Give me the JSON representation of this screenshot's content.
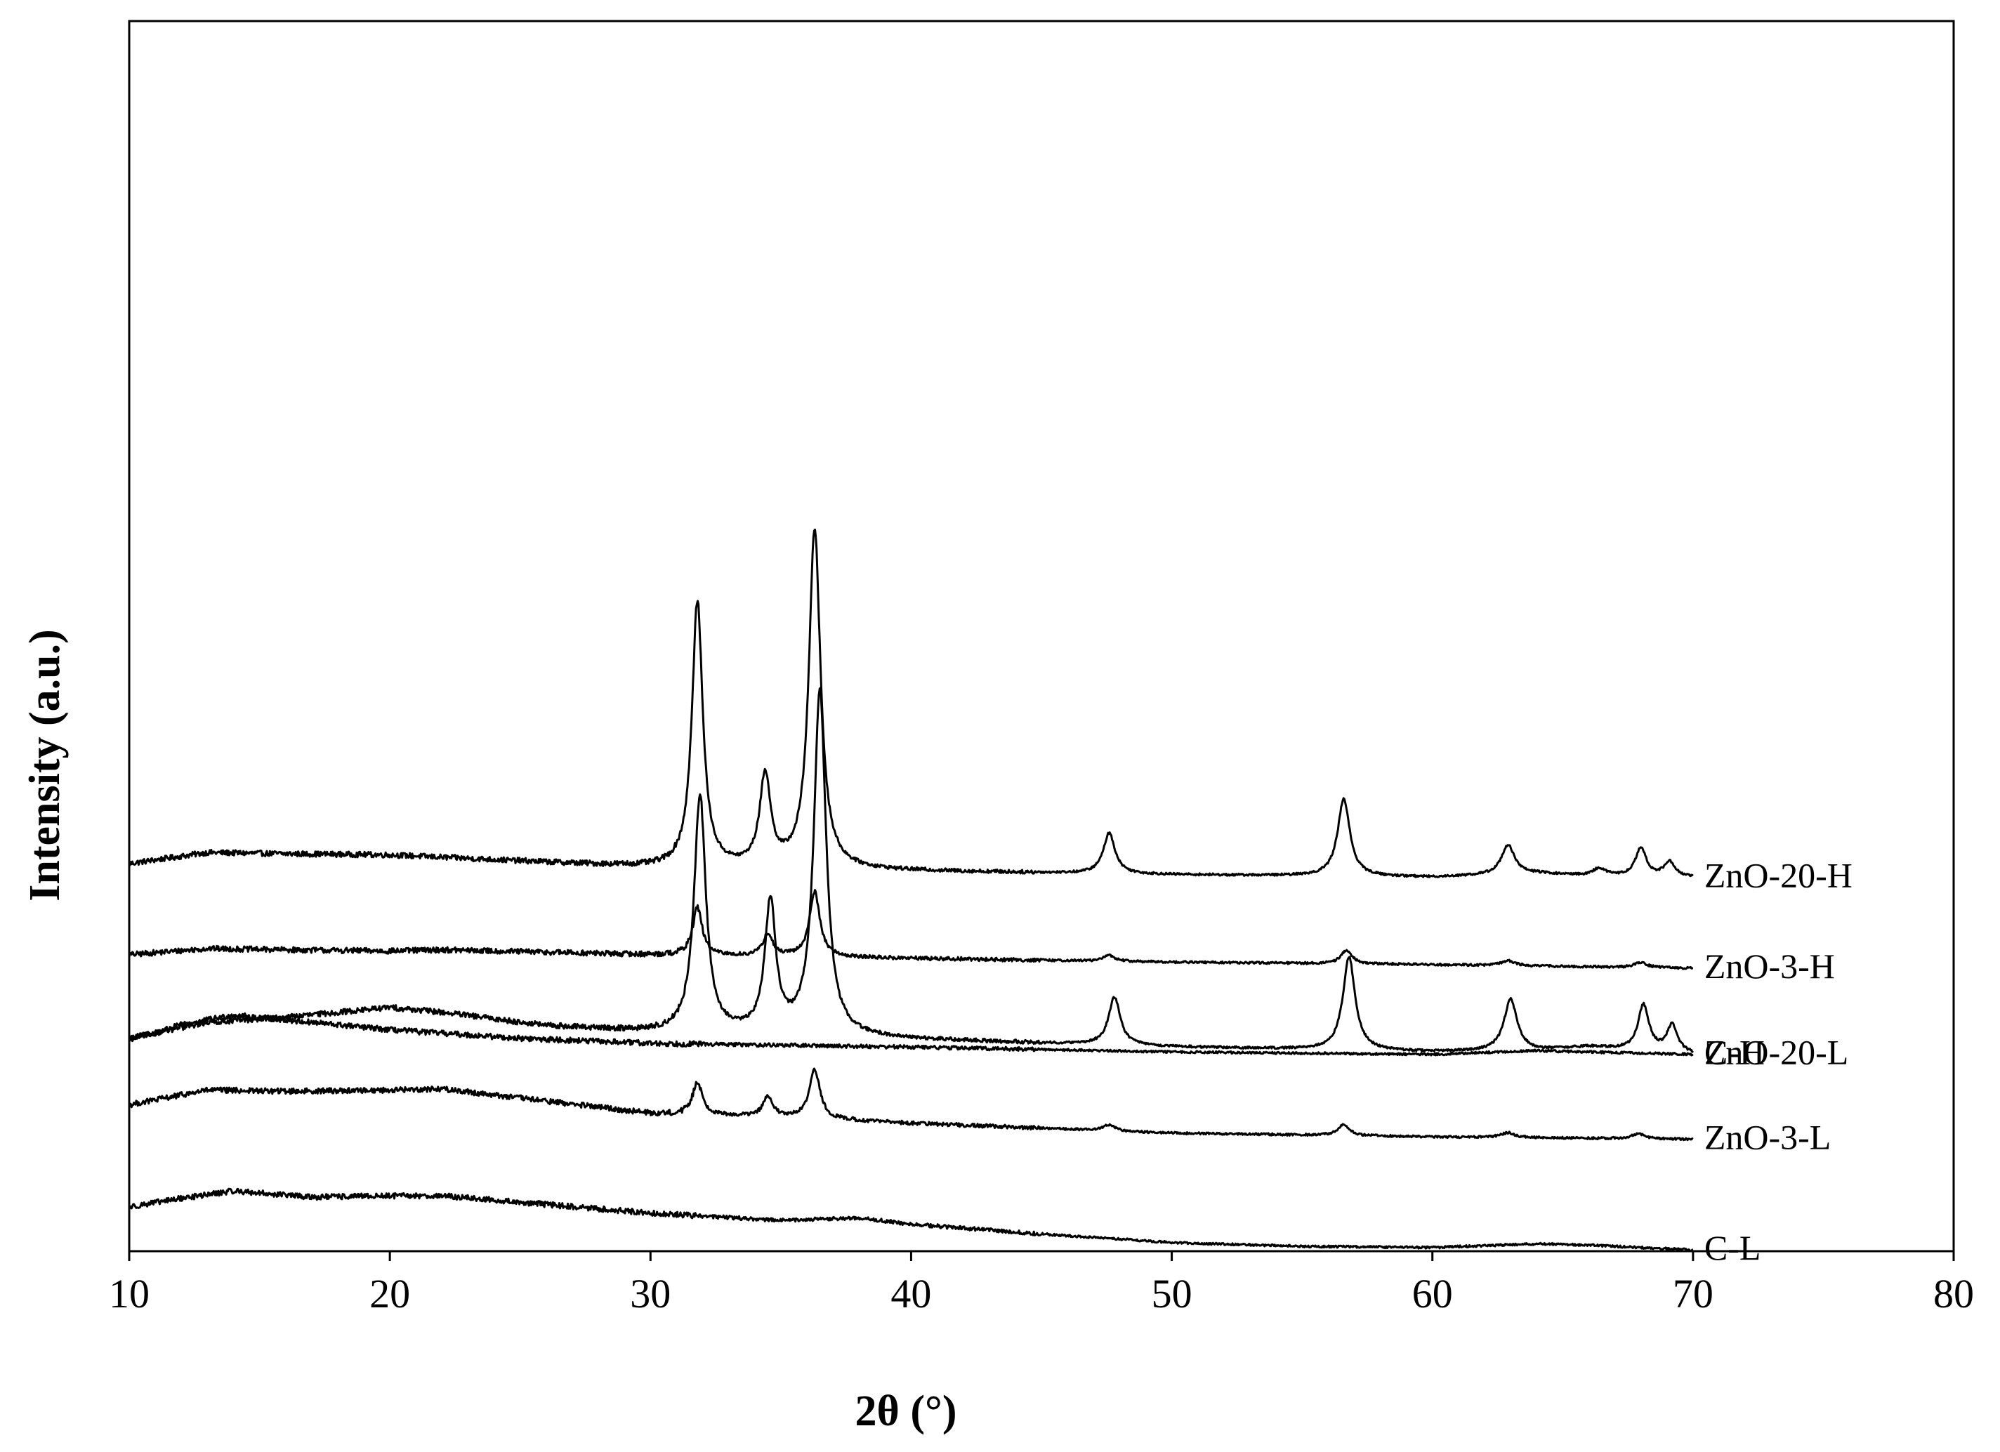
{
  "chart_data": {
    "type": "line",
    "title": "",
    "xlabel": "2θ (°)",
    "ylabel": "Intensity (a.u.)",
    "xlim": [
      10,
      80
    ],
    "xticks": [
      "10",
      "20",
      "30",
      "40",
      "50",
      "60",
      "70",
      "80"
    ],
    "yticks": [],
    "ylim": [
      0,
      100
    ],
    "grid": false,
    "legend": "inline-right",
    "line_color": "#000000",
    "series": [
      {
        "name": "ZnO-20-H",
        "baseline": [
          [
            10,
            31.5
          ],
          [
            13,
            32.4
          ],
          [
            16,
            32.3
          ],
          [
            20,
            32.2
          ],
          [
            22,
            32.0
          ],
          [
            26,
            31.6
          ],
          [
            30,
            31.2
          ],
          [
            40,
            30.9
          ],
          [
            50,
            30.6
          ],
          [
            60,
            30.4
          ],
          [
            64,
            30.7
          ],
          [
            66,
            30.5
          ],
          [
            70,
            30.4
          ]
        ],
        "peaks": [
          [
            31.8,
            21.6,
            0.25
          ],
          [
            34.4,
            7.4,
            0.25
          ],
          [
            36.3,
            27.6,
            0.27
          ],
          [
            47.6,
            3.3,
            0.27
          ],
          [
            56.6,
            6.3,
            0.28
          ],
          [
            62.9,
            2.4,
            0.3
          ],
          [
            66.4,
            0.6,
            0.3
          ],
          [
            68.0,
            2.3,
            0.25
          ],
          [
            69.1,
            1.2,
            0.25
          ]
        ]
      },
      {
        "name": "ZnO-3-H",
        "baseline": [
          [
            10,
            24.1
          ],
          [
            13,
            24.6
          ],
          [
            16,
            24.5
          ],
          [
            20,
            24.4
          ],
          [
            22,
            24.5
          ],
          [
            26,
            24.3
          ],
          [
            30,
            24.1
          ],
          [
            40,
            23.8
          ],
          [
            50,
            23.5
          ],
          [
            60,
            23.3
          ],
          [
            70,
            23.0
          ]
        ],
        "peaks": [
          [
            31.8,
            3.9,
            0.22
          ],
          [
            34.5,
            1.8,
            0.22
          ],
          [
            36.3,
            5.3,
            0.24
          ],
          [
            47.6,
            0.5,
            0.25
          ],
          [
            56.7,
            1.1,
            0.25
          ],
          [
            62.9,
            0.4,
            0.3
          ],
          [
            68.0,
            0.4,
            0.3
          ]
        ]
      },
      {
        "name": "C-H",
        "baseline": [
          [
            10,
            17.2
          ],
          [
            12,
            18.4
          ],
          [
            14,
            19.2
          ],
          [
            16,
            18.8
          ],
          [
            20,
            18.0
          ],
          [
            25,
            17.3
          ],
          [
            30,
            16.9
          ],
          [
            40,
            16.6
          ],
          [
            50,
            16.2
          ],
          [
            60,
            16.0
          ],
          [
            64,
            16.3
          ],
          [
            70,
            16.0
          ]
        ],
        "peaks": []
      },
      {
        "name": "ZnO-20-L",
        "baseline": [
          [
            10,
            17.3
          ],
          [
            13,
            18.6
          ],
          [
            16,
            19.0
          ],
          [
            20,
            19.8
          ],
          [
            22,
            19.4
          ],
          [
            26,
            18.3
          ],
          [
            30,
            17.8
          ],
          [
            35,
            17.6
          ],
          [
            40,
            17.2
          ],
          [
            50,
            16.6
          ],
          [
            60,
            16.2
          ],
          [
            64,
            16.3
          ],
          [
            66,
            16.6
          ],
          [
            70,
            16.0
          ]
        ],
        "peaks": [
          [
            31.9,
            19.3,
            0.27
          ],
          [
            34.6,
            10.6,
            0.25
          ],
          [
            36.5,
            28.1,
            0.28
          ],
          [
            47.8,
            3.9,
            0.27
          ],
          [
            56.8,
            7.6,
            0.28
          ],
          [
            63.0,
            4.2,
            0.3
          ],
          [
            68.1,
            3.7,
            0.25
          ],
          [
            69.2,
            2.2,
            0.25
          ]
        ]
      },
      {
        "name": "ZnO-3-L",
        "baseline": [
          [
            10,
            11.9
          ],
          [
            13,
            13.1
          ],
          [
            16,
            13.0
          ],
          [
            20,
            13.1
          ],
          [
            22,
            13.2
          ],
          [
            26,
            12.2
          ],
          [
            30,
            11.2
          ],
          [
            35,
            10.9
          ],
          [
            40,
            10.4
          ],
          [
            50,
            9.6
          ],
          [
            60,
            9.3
          ],
          [
            70,
            9.1
          ]
        ],
        "peaks": [
          [
            31.8,
            2.7,
            0.22
          ],
          [
            34.5,
            1.6,
            0.22
          ],
          [
            36.3,
            4.0,
            0.24
          ],
          [
            47.6,
            0.5,
            0.25
          ],
          [
            56.6,
            0.9,
            0.25
          ],
          [
            62.9,
            0.4,
            0.3
          ],
          [
            67.9,
            0.4,
            0.3
          ]
        ]
      },
      {
        "name": "C-L",
        "baseline": [
          [
            10,
            3.6
          ],
          [
            12,
            4.3
          ],
          [
            14,
            4.9
          ],
          [
            17,
            4.4
          ],
          [
            20,
            4.5
          ],
          [
            22,
            4.5
          ],
          [
            26,
            3.8
          ],
          [
            30,
            3.1
          ],
          [
            35,
            2.5
          ],
          [
            38,
            2.7
          ],
          [
            40,
            2.2
          ],
          [
            45,
            1.4
          ],
          [
            50,
            0.7
          ],
          [
            55,
            0.4
          ],
          [
            60,
            0.3
          ],
          [
            64,
            0.6
          ],
          [
            66,
            0.5
          ],
          [
            70,
            0.1
          ]
        ],
        "peaks": []
      }
    ]
  }
}
